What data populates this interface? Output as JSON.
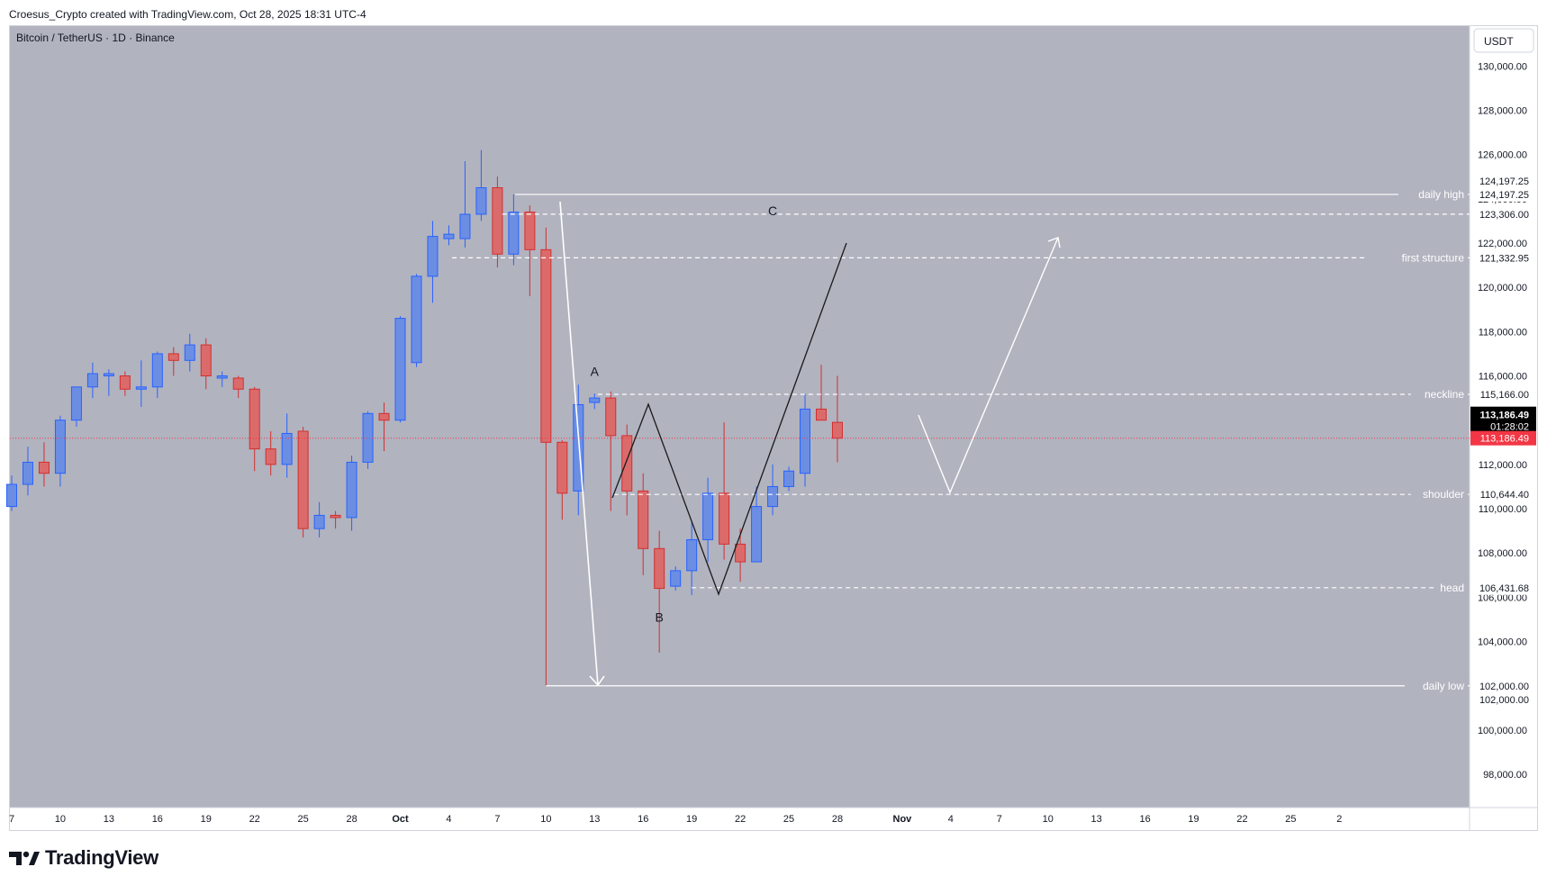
{
  "header": {
    "text": "Croesus_Crypto created with TradingView.com, Oct 28, 2025 18:31 UTC-4"
  },
  "brand": {
    "logo_text": "TradingView"
  },
  "chart_data": {
    "type": "candlestick",
    "title": "Bitcoin / TetherUS · 1D · Binance",
    "currency": "USDT",
    "ylim": [
      96500,
      131800
    ],
    "y_ticks": [
      98000,
      100000,
      102000,
      104000,
      106000,
      108000,
      110000,
      112000,
      114000,
      116000,
      118000,
      120000,
      122000,
      124000,
      126000,
      128000,
      130000
    ],
    "y_tick_labels": [
      "98,000.00",
      "100,000.00",
      "102,000.00",
      "104,000.00",
      "106,000.00",
      "108,000.00",
      "110,000.00",
      "112,000.00",
      "114,000.00",
      "116,000.00",
      "118,000.00",
      "120,000.00",
      "122,000.00",
      "124,000.00",
      "126,000.00",
      "128,000.00",
      "130,000.00"
    ],
    "x_ticks": [
      {
        "label": "7",
        "day": 0
      },
      {
        "label": "10",
        "day": 3
      },
      {
        "label": "13",
        "day": 6
      },
      {
        "label": "16",
        "day": 9
      },
      {
        "label": "19",
        "day": 12
      },
      {
        "label": "22",
        "day": 15
      },
      {
        "label": "25",
        "day": 18
      },
      {
        "label": "28",
        "day": 21
      },
      {
        "label": "Oct",
        "day": 24
      },
      {
        "label": "4",
        "day": 27
      },
      {
        "label": "7",
        "day": 30
      },
      {
        "label": "10",
        "day": 33
      },
      {
        "label": "13",
        "day": 36
      },
      {
        "label": "16",
        "day": 39
      },
      {
        "label": "19",
        "day": 42
      },
      {
        "label": "22",
        "day": 45
      },
      {
        "label": "25",
        "day": 48
      },
      {
        "label": "28",
        "day": 51
      },
      {
        "label": "Nov",
        "day": 55
      },
      {
        "label": "4",
        "day": 58
      },
      {
        "label": "7",
        "day": 61
      },
      {
        "label": "10",
        "day": 64
      },
      {
        "label": "13",
        "day": 67
      },
      {
        "label": "16",
        "day": 70
      },
      {
        "label": "19",
        "day": 73
      },
      {
        "label": "22",
        "day": 76
      },
      {
        "label": "25",
        "day": 79
      },
      {
        "label": "2",
        "day": 82
      }
    ],
    "candles": [
      {
        "o": 110100,
        "h": 111500,
        "l": 109900,
        "c": 111100
      },
      {
        "o": 111100,
        "h": 112800,
        "l": 110600,
        "c": 112100
      },
      {
        "o": 112100,
        "h": 113000,
        "l": 111000,
        "c": 111600
      },
      {
        "o": 111600,
        "h": 114200,
        "l": 111000,
        "c": 114000
      },
      {
        "o": 114000,
        "h": 115500,
        "l": 113700,
        "c": 115500
      },
      {
        "o": 115500,
        "h": 116600,
        "l": 115000,
        "c": 116100
      },
      {
        "o": 116000,
        "h": 116300,
        "l": 115100,
        "c": 116100
      },
      {
        "o": 116000,
        "h": 116200,
        "l": 115100,
        "c": 115400
      },
      {
        "o": 115400,
        "h": 116700,
        "l": 114600,
        "c": 115500
      },
      {
        "o": 115500,
        "h": 117100,
        "l": 115000,
        "c": 117000
      },
      {
        "o": 117000,
        "h": 117300,
        "l": 116000,
        "c": 116700
      },
      {
        "o": 116700,
        "h": 117900,
        "l": 116200,
        "c": 117400
      },
      {
        "o": 117400,
        "h": 117700,
        "l": 115400,
        "c": 116000
      },
      {
        "o": 115900,
        "h": 116200,
        "l": 115500,
        "c": 116000
      },
      {
        "o": 115900,
        "h": 116000,
        "l": 115000,
        "c": 115400
      },
      {
        "o": 115400,
        "h": 115500,
        "l": 111700,
        "c": 112700
      },
      {
        "o": 112700,
        "h": 113500,
        "l": 111500,
        "c": 112000
      },
      {
        "o": 112000,
        "h": 114300,
        "l": 111400,
        "c": 113400
      },
      {
        "o": 113500,
        "h": 113700,
        "l": 108700,
        "c": 109100
      },
      {
        "o": 109100,
        "h": 110300,
        "l": 108700,
        "c": 109700
      },
      {
        "o": 109700,
        "h": 109900,
        "l": 109100,
        "c": 109600
      },
      {
        "o": 109600,
        "h": 112400,
        "l": 109000,
        "c": 112100
      },
      {
        "o": 112100,
        "h": 114400,
        "l": 111800,
        "c": 114300
      },
      {
        "o": 114300,
        "h": 114800,
        "l": 112600,
        "c": 114000
      },
      {
        "o": 114000,
        "h": 118700,
        "l": 113900,
        "c": 118600
      },
      {
        "o": 116600,
        "h": 120600,
        "l": 116400,
        "c": 120500
      },
      {
        "o": 120500,
        "h": 123000,
        "l": 119300,
        "c": 122300
      },
      {
        "o": 122200,
        "h": 122800,
        "l": 121900,
        "c": 122400
      },
      {
        "o": 122200,
        "h": 125700,
        "l": 121800,
        "c": 123300
      },
      {
        "o": 123300,
        "h": 126200,
        "l": 123000,
        "c": 124500
      },
      {
        "o": 124500,
        "h": 125000,
        "l": 120900,
        "c": 121500
      },
      {
        "o": 121500,
        "h": 124200,
        "l": 121000,
        "c": 123400
      },
      {
        "o": 123400,
        "h": 123700,
        "l": 119600,
        "c": 121700
      },
      {
        "o": 121700,
        "h": 122700,
        "l": 102000,
        "c": 113000
      },
      {
        "o": 113000,
        "h": 113100,
        "l": 109500,
        "c": 110700
      },
      {
        "o": 110800,
        "h": 115600,
        "l": 109700,
        "c": 114700
      },
      {
        "o": 114800,
        "h": 115200,
        "l": 114500,
        "c": 115000
      },
      {
        "o": 115000,
        "h": 115300,
        "l": 109900,
        "c": 113300
      },
      {
        "o": 113300,
        "h": 113800,
        "l": 109700,
        "c": 110800
      },
      {
        "o": 110800,
        "h": 111600,
        "l": 107000,
        "c": 108200
      },
      {
        "o": 108200,
        "h": 109000,
        "l": 103500,
        "c": 106400
      },
      {
        "o": 106500,
        "h": 107400,
        "l": 106300,
        "c": 107200
      },
      {
        "o": 107200,
        "h": 109400,
        "l": 106100,
        "c": 108600
      },
      {
        "o": 108600,
        "h": 111400,
        "l": 107600,
        "c": 110700
      },
      {
        "o": 110700,
        "h": 113900,
        "l": 107700,
        "c": 108400
      },
      {
        "o": 108400,
        "h": 109100,
        "l": 106700,
        "c": 107600
      },
      {
        "o": 107600,
        "h": 111000,
        "l": 107600,
        "c": 110100
      },
      {
        "o": 110100,
        "h": 112000,
        "l": 109700,
        "c": 111000
      },
      {
        "o": 111000,
        "h": 111900,
        "l": 110800,
        "c": 111700
      },
      {
        "o": 111600,
        "h": 115200,
        "l": 111000,
        "c": 114500
      },
      {
        "o": 114500,
        "h": 116500,
        "l": 114000,
        "c": 114000
      },
      {
        "o": 113900,
        "h": 116000,
        "l": 112100,
        "c": 113186
      }
    ],
    "colors": {
      "up": "#6b8ee3",
      "up_wick": "#2962ff",
      "down": "#db6b6b",
      "down_wick": "#d32f2f",
      "background": "#b1b3bf",
      "price_tag": "#f23645"
    },
    "price_lines": [
      {
        "label": "daily high",
        "value": 124197.25,
        "tag": "124,197.25",
        "style": "solid",
        "startDay": 31.1
      },
      {
        "label": "",
        "value": 123306.0,
        "tag": "123,306.00",
        "style": "dashed",
        "startDay": 30.3
      },
      {
        "label": "first structure",
        "value": 121332.95,
        "tag": "121,332.95",
        "style": "dashed",
        "startDay": 27.2
      },
      {
        "label": "neckline",
        "value": 115166.0,
        "tag": "115,166.00",
        "style": "dashed",
        "startDay": 36.2
      },
      {
        "label": "shoulder",
        "value": 110644.4,
        "tag": "110,644.40",
        "style": "dashed",
        "startDay": 37.2
      },
      {
        "label": "head",
        "value": 106431.68,
        "tag": "106,431.68",
        "style": "dashed",
        "startDay": 42.0
      },
      {
        "label": "daily low",
        "value": 102000.0,
        "tag": "102,000.00",
        "style": "solid",
        "startDay": 33.0
      }
    ],
    "extra_tags": [
      {
        "value": 124197.25,
        "text": "124,197.25",
        "offset": -1
      },
      {
        "value": 102000.0,
        "text": "102,000.00",
        "offset": 1
      }
    ],
    "current_price": {
      "value": 113186.49,
      "label": "113,186.49",
      "countdown": "01:28:02"
    },
    "annotations": [
      {
        "text": "A",
        "day": 36.0,
        "price": 116000
      },
      {
        "text": "B",
        "day": 40.0,
        "price": 104900
      },
      {
        "text": "C",
        "day": 47.0,
        "price": 123250
      }
    ]
  }
}
